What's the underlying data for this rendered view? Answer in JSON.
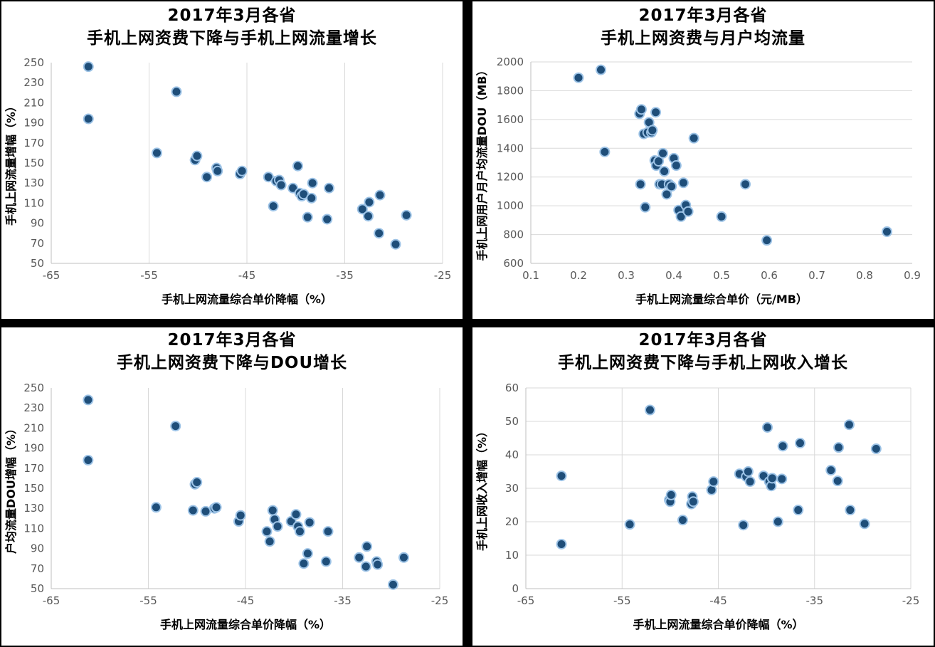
{
  "chart_data": [
    {
      "type": "scatter",
      "title": "2017年3月各省",
      "subtitle": "手机上网资费下降与手机上网流量增长",
      "xlabel": "手机上网流量综合单价降幅（%）",
      "ylabel": "手机上网流量增幅（%）",
      "xlim": [
        -65,
        -25
      ],
      "ylim": [
        50,
        250
      ],
      "xticks": [
        -65,
        -55,
        -45,
        -35,
        -25
      ],
      "yticks": [
        50,
        70,
        90,
        110,
        130,
        150,
        170,
        190,
        210,
        230,
        250
      ],
      "grid": "vertical",
      "x": [
        -61.2,
        -61.2,
        -52.2,
        -54.2,
        -50.3,
        -50.1,
        -49.1,
        -48.1,
        -48.0,
        -45.7,
        -45.5,
        -42.8,
        -42.3,
        -42.0,
        -41.7,
        -41.5,
        -40.3,
        -39.8,
        -39.6,
        -39.4,
        -39.2,
        -38.8,
        -38.4,
        -38.3,
        -36.8,
        -36.6,
        -33.2,
        -32.6,
        -32.5,
        -31.5,
        -31.4,
        -29.8,
        -28.7
      ],
      "y": [
        246,
        194,
        221,
        160,
        153,
        157,
        136,
        145,
        142,
        139,
        142,
        136,
        107,
        132,
        133,
        128,
        125,
        147,
        120,
        117,
        119,
        96,
        115,
        130,
        94,
        125,
        104,
        97,
        111,
        80,
        118,
        69,
        98
      ]
    },
    {
      "type": "scatter",
      "title": "2017年3月各省",
      "subtitle": "手机上网资费与月户均流量",
      "xlabel": "手机上网流量综合单价（元/MB）",
      "ylabel": "手机上网用户月户均流量DOU（MB）",
      "xlim": [
        0.1,
        0.9
      ],
      "ylim": [
        600,
        2000
      ],
      "xticks": [
        0.1,
        0.2,
        0.3,
        0.4,
        0.5,
        0.6,
        0.7,
        0.8,
        0.9
      ],
      "yticks": [
        600,
        800,
        1000,
        1200,
        1400,
        1600,
        1800,
        2000
      ],
      "grid": "horizontal",
      "x": [
        0.2,
        0.247,
        0.255,
        0.328,
        0.332,
        0.33,
        0.337,
        0.34,
        0.345,
        0.348,
        0.353,
        0.355,
        0.36,
        0.362,
        0.363,
        0.368,
        0.37,
        0.375,
        0.377,
        0.38,
        0.385,
        0.39,
        0.395,
        0.4,
        0.405,
        0.41,
        0.415,
        0.42,
        0.425,
        0.43,
        0.442,
        0.5,
        0.55,
        0.595,
        0.847
      ],
      "y": [
        1890,
        1945,
        1375,
        1640,
        1670,
        1150,
        1500,
        990,
        1510,
        1580,
        1510,
        1525,
        1315,
        1650,
        1280,
        1310,
        1150,
        1150,
        1365,
        1240,
        1080,
        1150,
        1135,
        1330,
        1280,
        970,
        925,
        1160,
        1005,
        960,
        1470,
        925,
        1150,
        760,
        820
      ]
    },
    {
      "type": "scatter",
      "title": "2017年3月各省",
      "subtitle": "手机上网资费下降与DOU增长",
      "xlabel": "手机上网流量综合单价降幅（%）",
      "ylabel": "户均流量DOU增幅（%）",
      "xlim": [
        -65,
        -25
      ],
      "ylim": [
        50,
        250
      ],
      "xticks": [
        -65,
        -55,
        -45,
        -35,
        -25
      ],
      "yticks": [
        50,
        70,
        90,
        110,
        130,
        150,
        170,
        190,
        210,
        230,
        250
      ],
      "grid": "vertical",
      "x": [
        -61.2,
        -61.2,
        -52.2,
        -54.2,
        -50.4,
        -50.2,
        -50.0,
        -49.1,
        -48.2,
        -48.0,
        -45.7,
        -45.5,
        -42.8,
        -42.5,
        -42.2,
        -42.0,
        -41.7,
        -40.3,
        -39.8,
        -39.6,
        -39.4,
        -39.0,
        -38.6,
        -38.4,
        -36.7,
        -36.5,
        -33.3,
        -32.6,
        -32.5,
        -31.5,
        -31.4,
        -29.8,
        -28.7
      ],
      "y": [
        238,
        178,
        212,
        131,
        128,
        154,
        156,
        127,
        130,
        131,
        117,
        123,
        107,
        97,
        128,
        119,
        112,
        117,
        124,
        112,
        107,
        75,
        85,
        116,
        77,
        107,
        81,
        72,
        92,
        77,
        74,
        54,
        81
      ]
    },
    {
      "type": "scatter",
      "title": "2017年3月各省",
      "subtitle": "手机上网资费下降与手机上网收入增长",
      "xlabel": "手机上网流量综合单价降幅（%）",
      "ylabel": "手机上网收入增幅（%）",
      "xlim": [
        -65,
        -25
      ],
      "ylim": [
        0,
        60
      ],
      "xticks": [
        -65,
        -55,
        -45,
        -35,
        -25
      ],
      "yticks": [
        0,
        10,
        20,
        30,
        40,
        50,
        60
      ],
      "grid": "both",
      "x": [
        -61.3,
        -61.3,
        -54.2,
        -52.1,
        -50.1,
        -50.0,
        -49.9,
        -48.7,
        -47.8,
        -47.7,
        -47.6,
        -45.7,
        -45.5,
        -42.8,
        -42.4,
        -42.1,
        -41.9,
        -41.7,
        -40.3,
        -39.9,
        -39.7,
        -39.5,
        -39.4,
        -38.8,
        -38.4,
        -38.3,
        -36.7,
        -36.5,
        -33.3,
        -32.6,
        -32.5,
        -31.4,
        -31.3,
        -29.8,
        -28.6
      ],
      "y": [
        33.7,
        13.3,
        19.2,
        53.4,
        26.5,
        26.0,
        28.0,
        20.5,
        25.3,
        27.5,
        26.0,
        29.5,
        32.0,
        34.3,
        19.0,
        33.5,
        35.0,
        32.0,
        33.7,
        48.2,
        32.0,
        30.7,
        33.0,
        20.0,
        32.8,
        42.6,
        23.5,
        43.5,
        35.4,
        32.2,
        42.2,
        49.0,
        23.5,
        19.4,
        41.8
      ]
    }
  ]
}
